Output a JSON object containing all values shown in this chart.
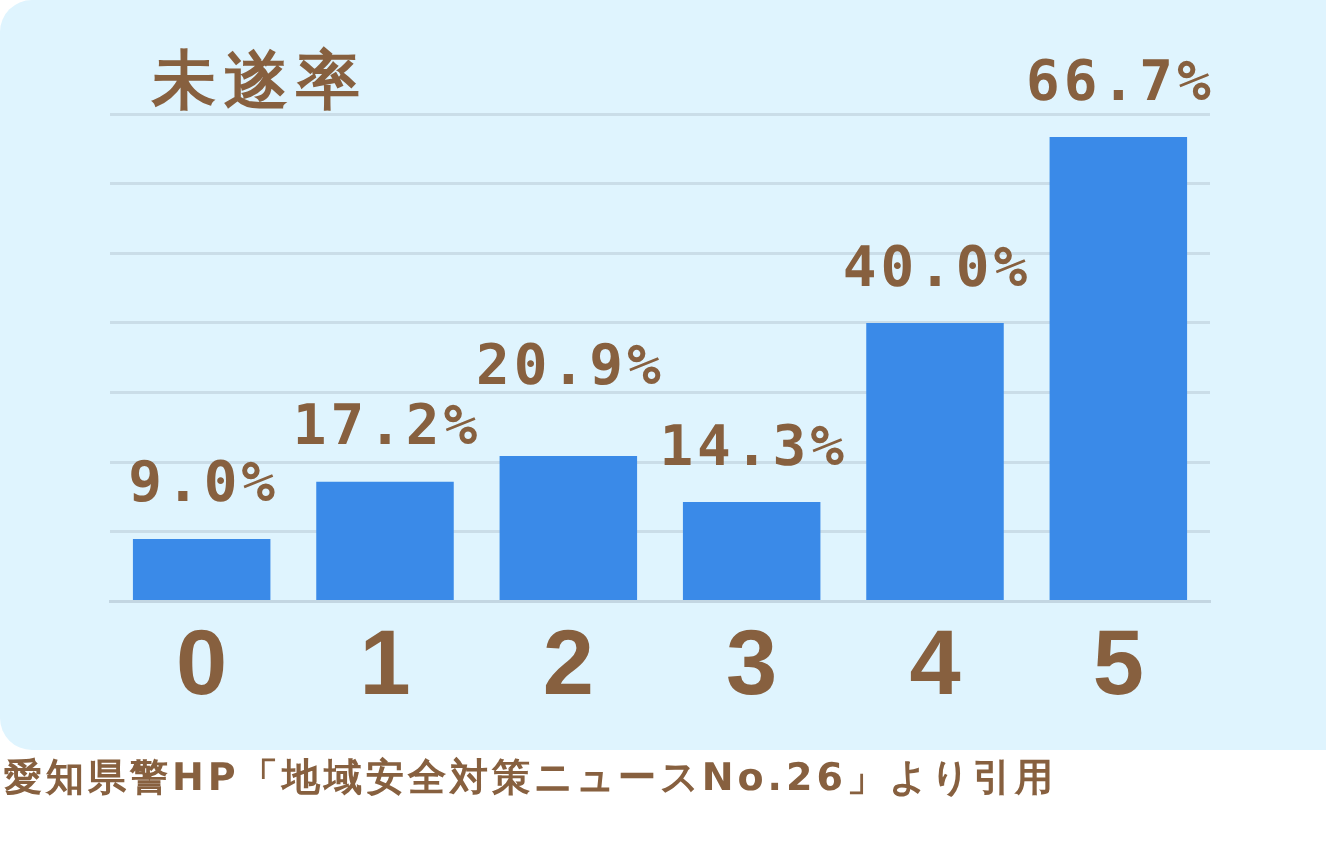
{
  "chart_data": {
    "type": "bar",
    "title": "未遂率",
    "categories": [
      "0",
      "1",
      "2",
      "3",
      "4",
      "5"
    ],
    "values": [
      9.0,
      17.2,
      20.9,
      14.3,
      40.0,
      66.7
    ],
    "value_labels": [
      "9.0%",
      "17.2%",
      "20.9%",
      "14.3%",
      "40.0%",
      "66.7%"
    ],
    "color": "#3a8ae8",
    "ylim": [
      0,
      70
    ],
    "yticks": [
      0,
      10,
      20,
      30,
      40,
      50,
      60,
      70
    ],
    "grid": "y",
    "tick_labels": "x",
    "annotations": [
      "愛知県警HP「地域安全対策ニュースNo.26」より引用"
    ]
  }
}
